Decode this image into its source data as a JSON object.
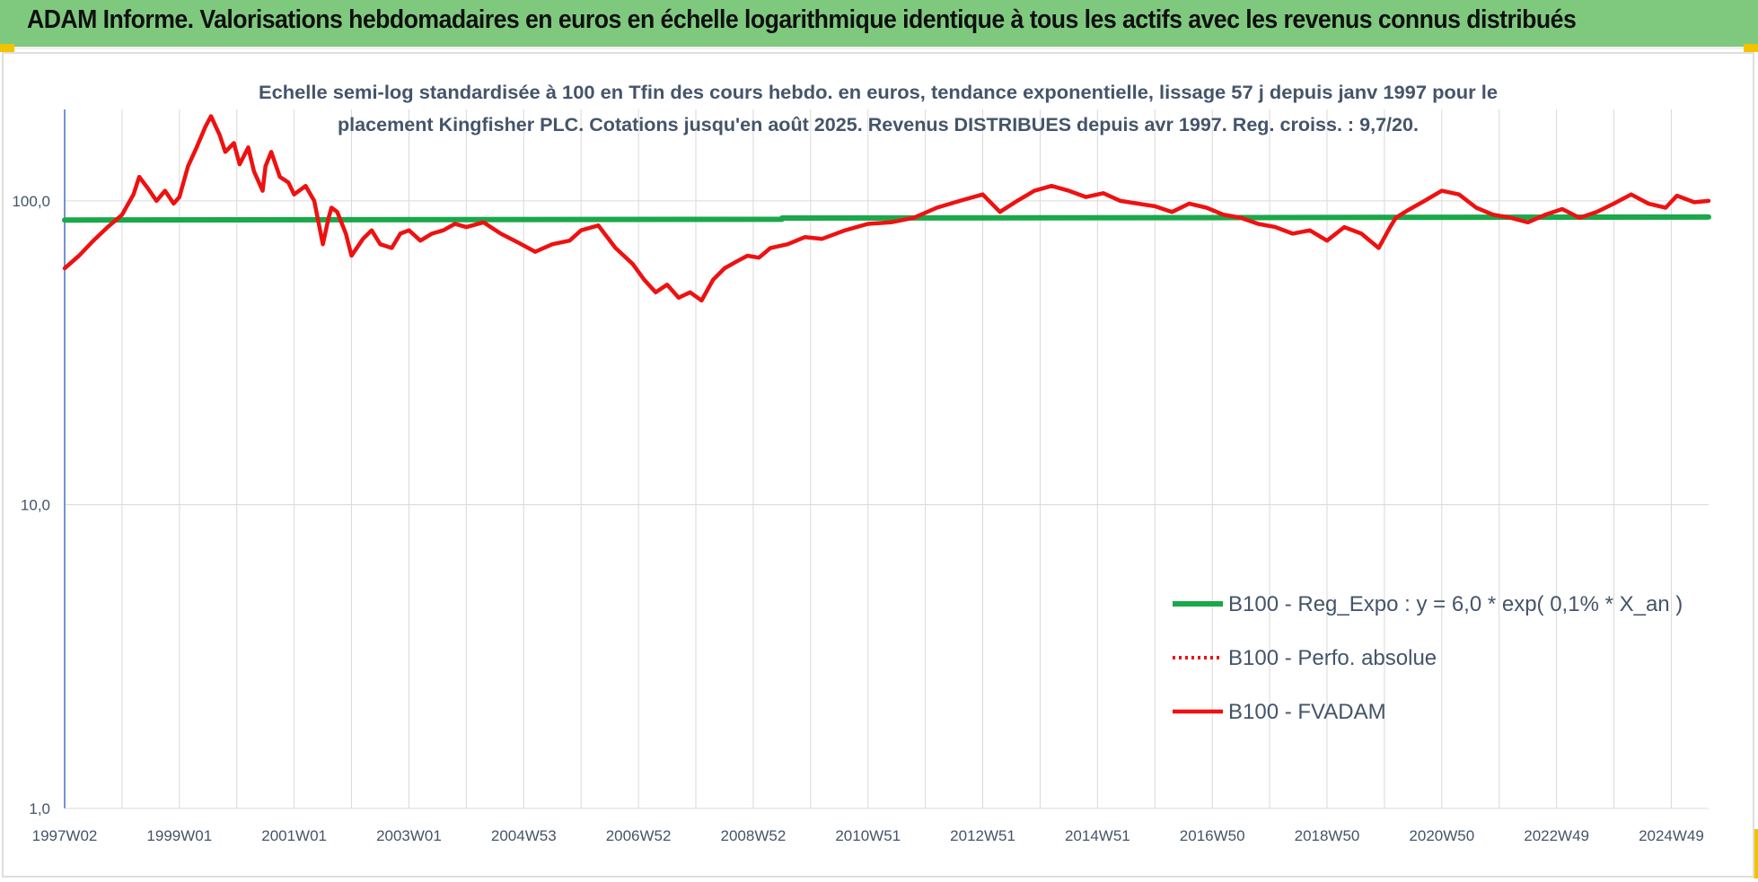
{
  "header": {
    "title": "ADAM Informe. Valorisations hebdomadaires en euros en échelle logarithmique identique à tous les actifs avec les revenus connus distribués"
  },
  "colors": {
    "header_bg": "#7fc97f",
    "accent": "#f2c400",
    "regression": "#1aa84a",
    "performance": "#ee1111",
    "axis": "#4472c4",
    "grid": "#d9d9d9",
    "text": "#44546a"
  },
  "chart_data": {
    "type": "line",
    "title_lines": [
      "Echelle semi-log standardisée à 100 en Tfin des cours hebdo. en euros, tendance exponentielle, lissage 57 j depuis janv 1997 pour le",
      "placement Kingfisher PLC. Cotations jusqu'en août 2025. Revenus DISTRIBUES depuis avr 1997. Reg. croiss. : 9,7/20."
    ],
    "y_scale": "log",
    "ylim": [
      1,
      200
    ],
    "y_ticks": [
      "1,0",
      "10,0",
      "100,0"
    ],
    "y_tick_values": [
      1,
      10,
      100
    ],
    "x_tick_labels": [
      "1997W02",
      "1999W01",
      "2001W01",
      "2003W01",
      "2004W53",
      "2006W52",
      "2008W52",
      "2010W51",
      "2012W51",
      "2014W51",
      "2016W50",
      "2018W50",
      "2020W50",
      "2022W49",
      "2024W49"
    ],
    "x_tick_years": [
      1997.0,
      1999.0,
      2001.0,
      2003.0,
      2005.0,
      2007.0,
      2009.0,
      2011.0,
      2013.0,
      2015.0,
      2017.0,
      2019.0,
      2021.0,
      2023.0,
      2025.0
    ],
    "xlim": [
      1997.0,
      2025.65
    ],
    "grid": "vertical and horizontal",
    "legend_position": "center-right",
    "series": [
      {
        "name": "B100 - Reg_Expo : y = 6,0 * exp( 0,1% *  X_an )",
        "style": "solid-green",
        "x": [
          1997.0,
          2009.5,
          2009.5,
          2025.65
        ],
        "y": [
          86.5,
          87.0,
          87.8,
          88.5
        ]
      },
      {
        "name": "B100 - Perfo. absolue",
        "style": "dotted-red",
        "x": [],
        "y": []
      },
      {
        "name": "B100 - FVADAM",
        "style": "solid-red",
        "x": [
          1997.0,
          1997.25,
          1997.5,
          1997.75,
          1998.0,
          1998.2,
          1998.3,
          1998.45,
          1998.6,
          1998.75,
          1998.9,
          1999.0,
          1999.15,
          1999.3,
          1999.45,
          1999.55,
          1999.7,
          1999.8,
          1999.95,
          2000.05,
          2000.2,
          2000.3,
          2000.45,
          2000.5,
          2000.6,
          2000.75,
          2000.9,
          2001.0,
          2001.2,
          2001.35,
          2001.5,
          2001.6,
          2001.65,
          2001.75,
          2001.9,
          2002.0,
          2002.2,
          2002.35,
          2002.5,
          2002.7,
          2002.85,
          2003.0,
          2003.2,
          2003.4,
          2003.6,
          2003.8,
          2004.0,
          2004.3,
          2004.6,
          2004.9,
          2005.2,
          2005.5,
          2005.8,
          2006.0,
          2006.3,
          2006.6,
          2006.9,
          2007.1,
          2007.3,
          2007.5,
          2007.7,
          2007.9,
          2008.1,
          2008.3,
          2008.5,
          2008.7,
          2008.9,
          2009.1,
          2009.3,
          2009.6,
          2009.9,
          2010.2,
          2010.6,
          2011.0,
          2011.4,
          2011.8,
          2012.2,
          2012.6,
          2013.0,
          2013.3,
          2013.6,
          2013.9,
          2014.2,
          2014.5,
          2014.8,
          2015.1,
          2015.4,
          2015.7,
          2016.0,
          2016.3,
          2016.6,
          2016.9,
          2017.2,
          2017.5,
          2017.8,
          2018.1,
          2018.4,
          2018.7,
          2019.0,
          2019.3,
          2019.6,
          2019.9,
          2020.1,
          2020.2,
          2020.4,
          2020.7,
          2021.0,
          2021.3,
          2021.6,
          2021.9,
          2022.2,
          2022.5,
          2022.8,
          2023.1,
          2023.4,
          2023.7,
          2024.0,
          2024.3,
          2024.6,
          2024.9,
          2025.1,
          2025.4,
          2025.65
        ],
        "y": [
          60,
          66,
          74,
          82,
          90,
          105,
          120,
          110,
          100,
          108,
          98,
          103,
          130,
          150,
          175,
          190,
          165,
          145,
          155,
          132,
          150,
          125,
          108,
          130,
          145,
          120,
          115,
          105,
          112,
          100,
          72,
          88,
          95,
          92,
          78,
          66,
          75,
          80,
          72,
          70,
          78,
          80,
          74,
          78,
          80,
          84,
          82,
          85,
          78,
          73,
          68,
          72,
          74,
          80,
          83,
          70,
          62,
          55,
          50,
          53,
          48,
          50,
          47,
          55,
          60,
          63,
          66,
          65,
          70,
          72,
          76,
          75,
          80,
          84,
          85,
          88,
          95,
          100,
          105,
          92,
          100,
          108,
          112,
          108,
          103,
          106,
          100,
          98,
          96,
          92,
          98,
          95,
          90,
          88,
          84,
          82,
          78,
          80,
          74,
          82,
          78,
          70,
          82,
          88,
          93,
          100,
          108,
          105,
          95,
          90,
          88,
          85,
          90,
          94,
          88,
          92,
          98,
          105,
          98,
          95,
          104,
          99,
          100
        ]
      }
    ]
  }
}
